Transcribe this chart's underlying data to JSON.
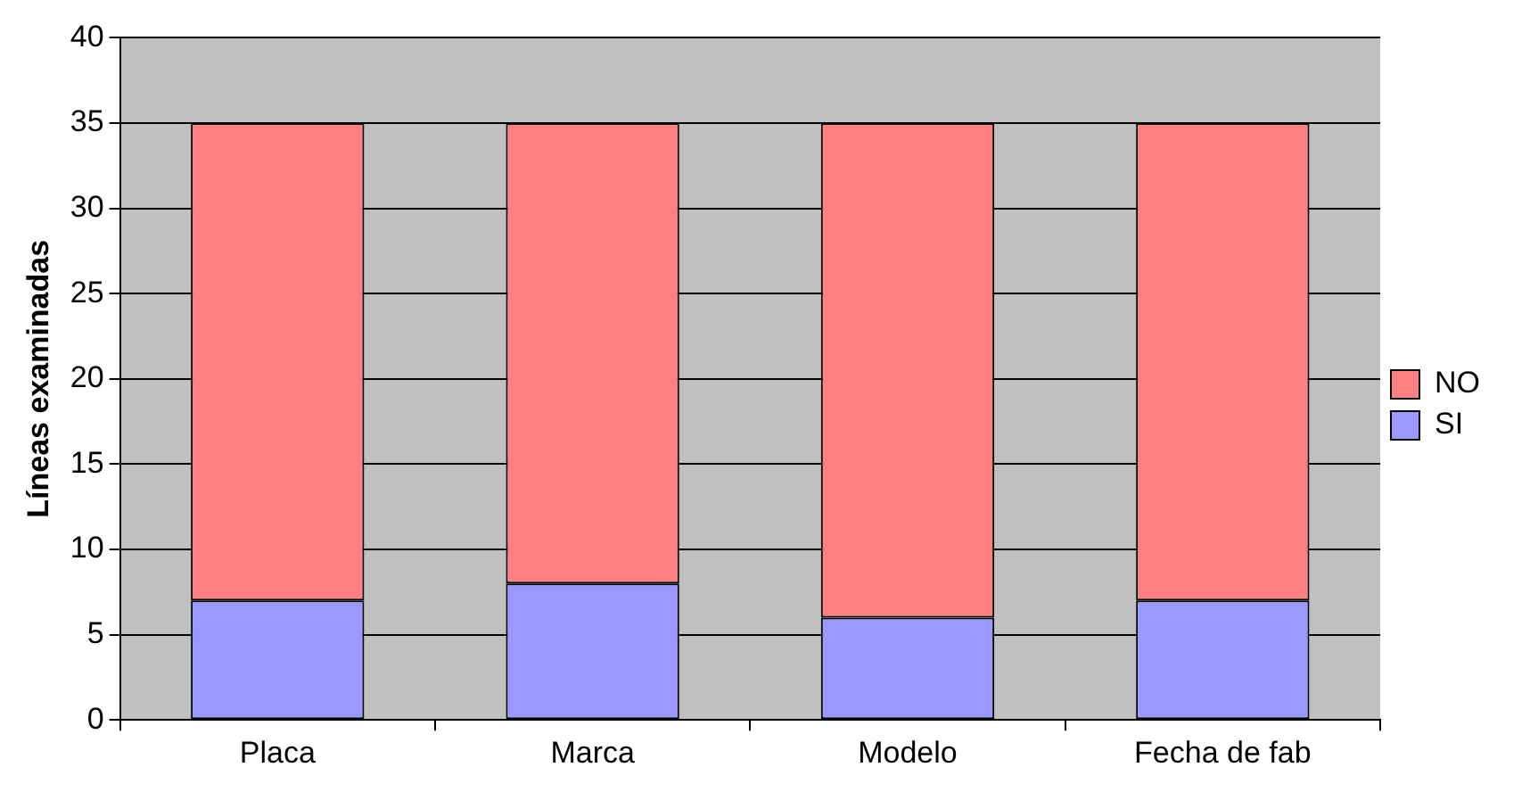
{
  "chart_data": {
    "type": "bar",
    "ylabel": "Líneas examinadas",
    "categories": [
      "Placa",
      "Marca",
      "Modelo",
      "Fecha de fab"
    ],
    "stacked": true,
    "series": [
      {
        "name": "SI",
        "color": "#9999ff",
        "values": [
          7,
          8,
          6,
          7
        ]
      },
      {
        "name": "NO",
        "color": "#ff8080",
        "values": [
          28,
          27,
          29,
          28
        ]
      }
    ],
    "ylim": [
      0,
      40
    ],
    "yticks": [
      0,
      5,
      10,
      15,
      20,
      25,
      30,
      35,
      40
    ],
    "grid": "y",
    "legend": "right"
  }
}
